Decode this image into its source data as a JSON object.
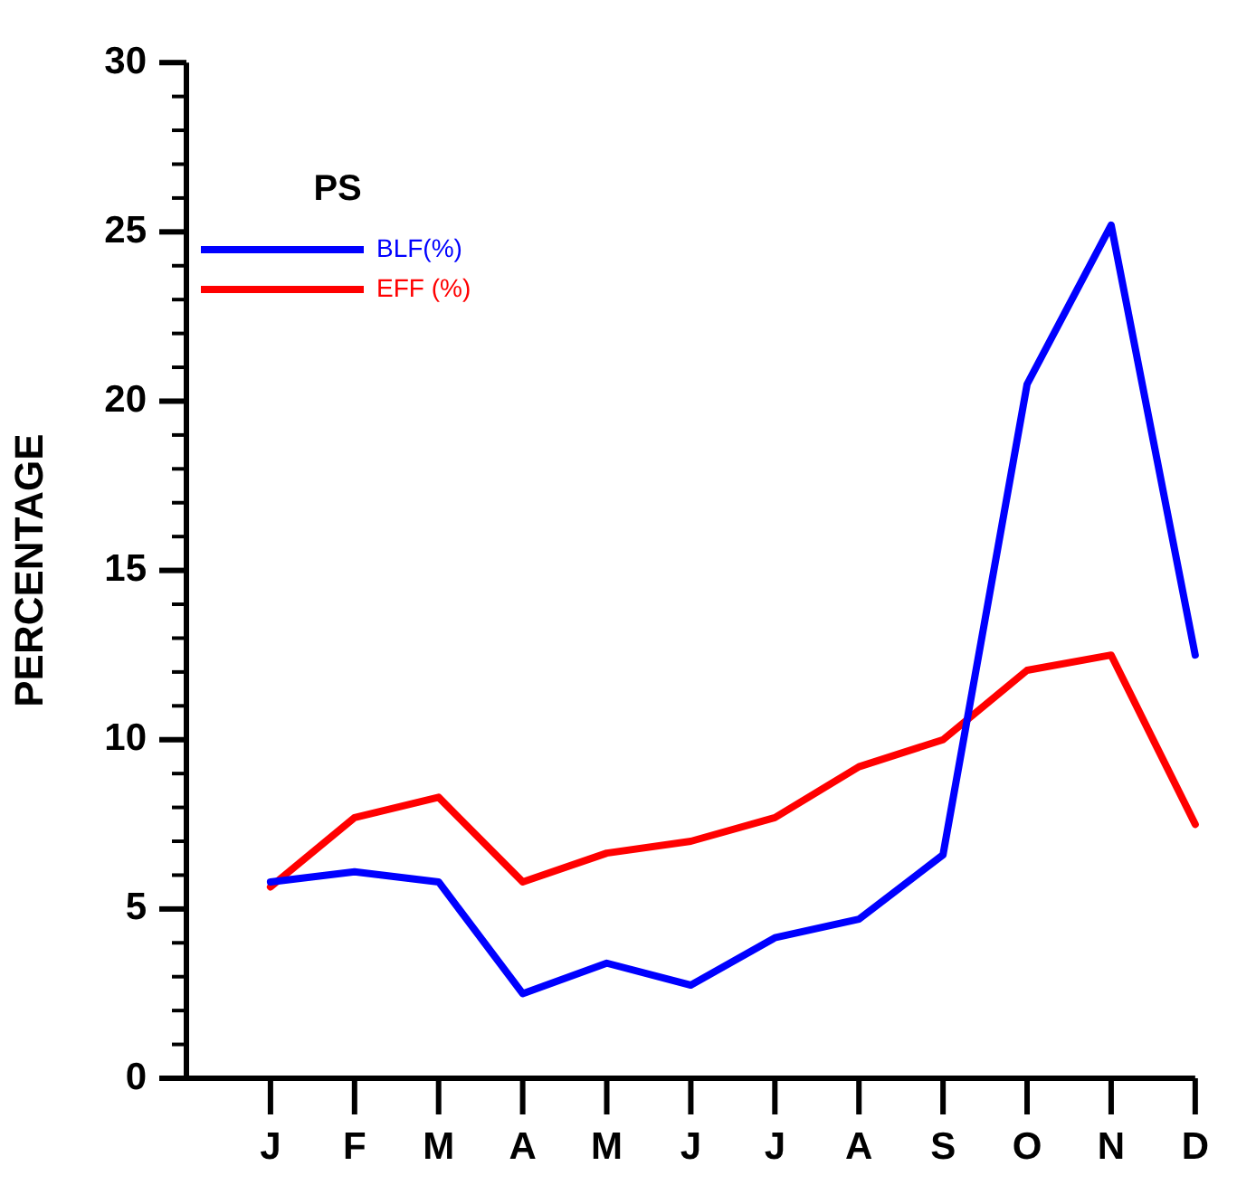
{
  "chart_data": {
    "type": "line",
    "ylabel": "PERCENTAGE",
    "legend_title": "PS",
    "categories": [
      "J",
      "F",
      "M",
      "A",
      "M",
      "J",
      "J",
      "A",
      "S",
      "O",
      "N",
      "D"
    ],
    "series": [
      {
        "name": "BLF(%)",
        "color": "#0000ff",
        "values": [
          5.8,
          6.1,
          5.8,
          2.5,
          3.4,
          2.75,
          4.15,
          4.7,
          6.6,
          20.5,
          25.2,
          12.5
        ]
      },
      {
        "name": "EFF (%)",
        "color": "#ff0000",
        "values": [
          5.65,
          7.7,
          8.3,
          5.8,
          6.65,
          7.0,
          7.7,
          9.2,
          10.0,
          12.05,
          12.5,
          7.5
        ]
      }
    ],
    "ylim": [
      0,
      30
    ],
    "yticks": [
      0,
      {
        "value": 1,
        "label": null
      },
      {
        "value": 2,
        "label": null
      },
      {
        "value": 3,
        "label": null
      },
      {
        "value": 4,
        "label": null
      },
      5,
      {
        "value": 6,
        "label": null
      },
      {
        "value": 7,
        "label": null
      },
      {
        "value": 8,
        "label": null
      },
      {
        "value": 9,
        "label": null
      },
      10,
      {
        "value": 11,
        "label": null
      },
      {
        "value": 12,
        "label": null
      },
      {
        "value": 13,
        "label": null
      },
      {
        "value": 14,
        "label": null
      },
      15,
      {
        "value": 16,
        "label": null
      },
      {
        "value": 17,
        "label": null
      },
      {
        "value": 18,
        "label": null
      },
      {
        "value": 19,
        "label": null
      },
      20,
      {
        "value": 21,
        "label": null
      },
      {
        "value": 22,
        "label": null
      },
      {
        "value": 23,
        "label": null
      },
      {
        "value": 24,
        "label": null
      },
      25,
      {
        "value": 26,
        "label": null
      },
      {
        "value": 27,
        "label": null
      },
      {
        "value": 28,
        "label": null
      },
      {
        "value": 29,
        "label": null
      },
      30
    ],
    "grid": false,
    "legend": "top left",
    "marker": "none",
    "line_style": "solid"
  }
}
